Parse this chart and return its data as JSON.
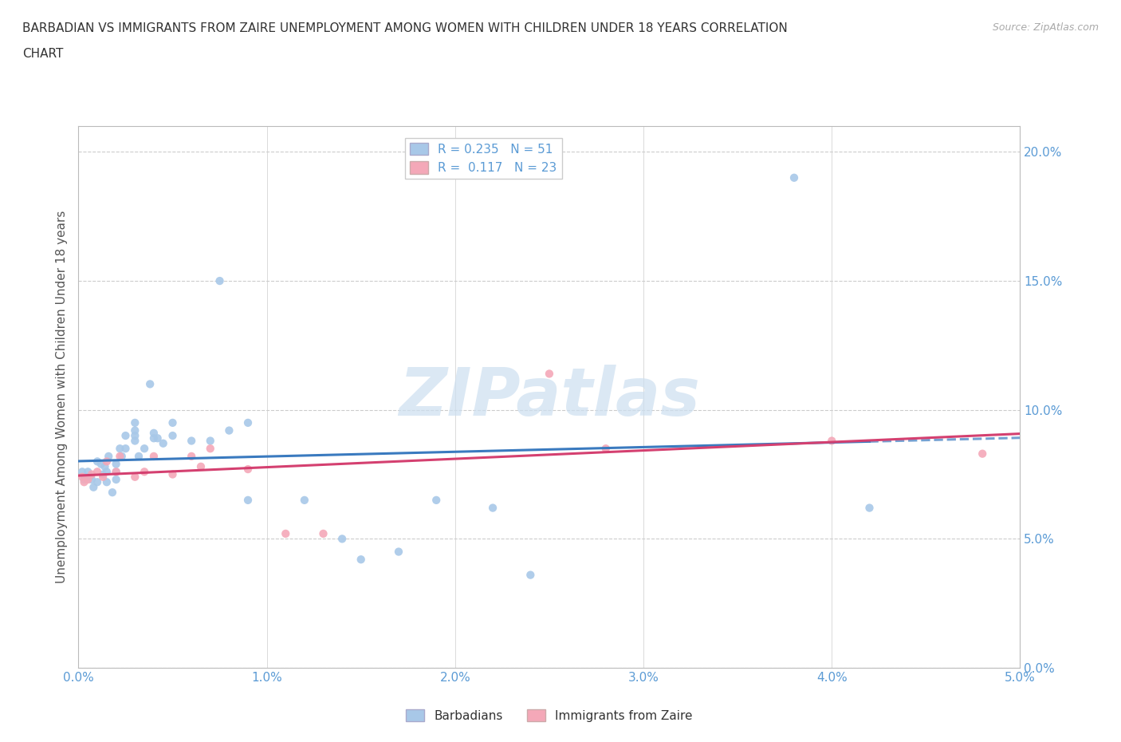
{
  "title_line1": "BARBADIAN VS IMMIGRANTS FROM ZAIRE UNEMPLOYMENT AMONG WOMEN WITH CHILDREN UNDER 18 YEARS CORRELATION",
  "title_line2": "CHART",
  "source": "Source: ZipAtlas.com",
  "ylabel": "Unemployment Among Women with Children Under 18 years",
  "xlim": [
    0.0,
    0.05
  ],
  "ylim": [
    0.0,
    0.21
  ],
  "yticks": [
    0.0,
    0.05,
    0.1,
    0.15,
    0.2
  ],
  "xticks": [
    0.0,
    0.01,
    0.02,
    0.03,
    0.04,
    0.05
  ],
  "barbadians_R": 0.235,
  "barbadians_N": 51,
  "zaire_R": 0.117,
  "zaire_N": 23,
  "barbadians_color": "#a8c8e8",
  "zaire_color": "#f4a8b8",
  "barbadians_line_color": "#3a7abf",
  "zaire_line_color": "#d44070",
  "watermark_color": "#ccdff0",
  "barbadians_x": [
    0.0002,
    0.0003,
    0.0004,
    0.0005,
    0.0006,
    0.0007,
    0.0008,
    0.001,
    0.001,
    0.0012,
    0.0013,
    0.0014,
    0.0015,
    0.0015,
    0.0016,
    0.0018,
    0.002,
    0.002,
    0.002,
    0.0022,
    0.0023,
    0.0025,
    0.0025,
    0.003,
    0.003,
    0.003,
    0.003,
    0.0032,
    0.0035,
    0.0038,
    0.004,
    0.004,
    0.0042,
    0.0045,
    0.005,
    0.005,
    0.006,
    0.007,
    0.0075,
    0.008,
    0.009,
    0.009,
    0.012,
    0.014,
    0.015,
    0.017,
    0.019,
    0.022,
    0.024,
    0.038,
    0.042
  ],
  "barbadians_y": [
    0.076,
    0.073,
    0.074,
    0.076,
    0.074,
    0.073,
    0.07,
    0.072,
    0.08,
    0.079,
    0.075,
    0.078,
    0.072,
    0.076,
    0.082,
    0.068,
    0.073,
    0.076,
    0.079,
    0.085,
    0.082,
    0.085,
    0.09,
    0.088,
    0.09,
    0.092,
    0.095,
    0.082,
    0.085,
    0.11,
    0.089,
    0.091,
    0.089,
    0.087,
    0.09,
    0.095,
    0.088,
    0.088,
    0.15,
    0.092,
    0.065,
    0.095,
    0.065,
    0.05,
    0.042,
    0.045,
    0.065,
    0.062,
    0.036,
    0.19,
    0.062
  ],
  "zaire_x": [
    0.0002,
    0.0003,
    0.0005,
    0.0007,
    0.001,
    0.0013,
    0.0015,
    0.002,
    0.0022,
    0.003,
    0.0035,
    0.004,
    0.005,
    0.006,
    0.0065,
    0.007,
    0.009,
    0.011,
    0.013,
    0.025,
    0.028,
    0.04,
    0.048
  ],
  "zaire_y": [
    0.074,
    0.072,
    0.073,
    0.075,
    0.076,
    0.074,
    0.08,
    0.076,
    0.082,
    0.074,
    0.076,
    0.082,
    0.075,
    0.082,
    0.078,
    0.085,
    0.077,
    0.052,
    0.052,
    0.114,
    0.085,
    0.088,
    0.083
  ]
}
